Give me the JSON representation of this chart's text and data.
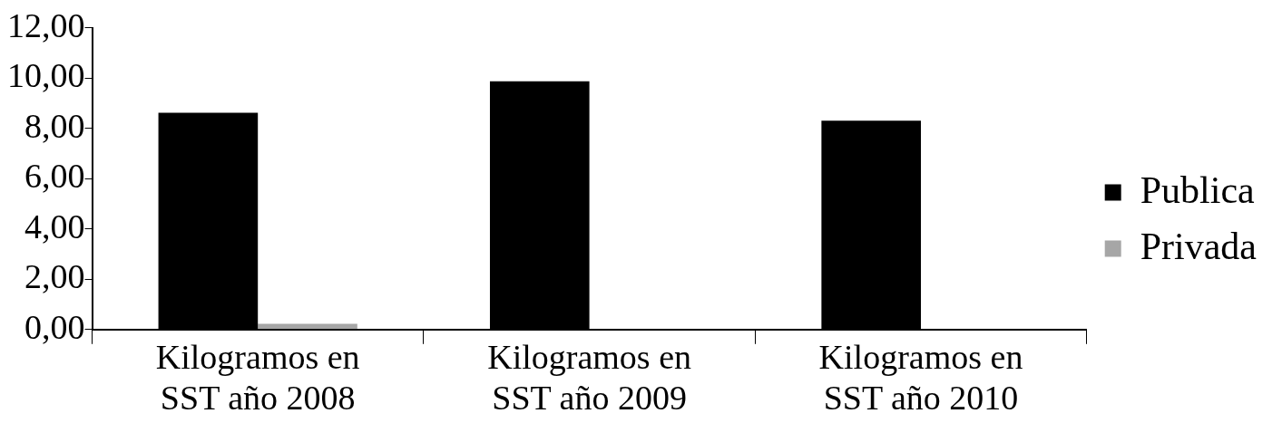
{
  "chart_data": {
    "type": "bar",
    "categories": [
      "Kilogramos en SST año 2008",
      "Kilogramos en SST año 2009",
      "Kilogramos en SST año 2010"
    ],
    "series": [
      {
        "name": "Publica",
        "color": "#000000",
        "values": [
          8.62,
          9.88,
          8.31
        ]
      },
      {
        "name": "Privada",
        "color": "#a6a6a6",
        "values": [
          0.23,
          0,
          0
        ]
      }
    ],
    "ylim": [
      0,
      12
    ],
    "yticks": [
      {
        "value": 0,
        "label": "0,00"
      },
      {
        "value": 2,
        "label": "2,00"
      },
      {
        "value": 4,
        "label": "4,00"
      },
      {
        "value": 6,
        "label": "6,00"
      },
      {
        "value": 8,
        "label": "8,00"
      },
      {
        "value": 10,
        "label": "10,00"
      },
      {
        "value": 12,
        "label": "12,00"
      }
    ],
    "grid": false,
    "legend": "right"
  }
}
